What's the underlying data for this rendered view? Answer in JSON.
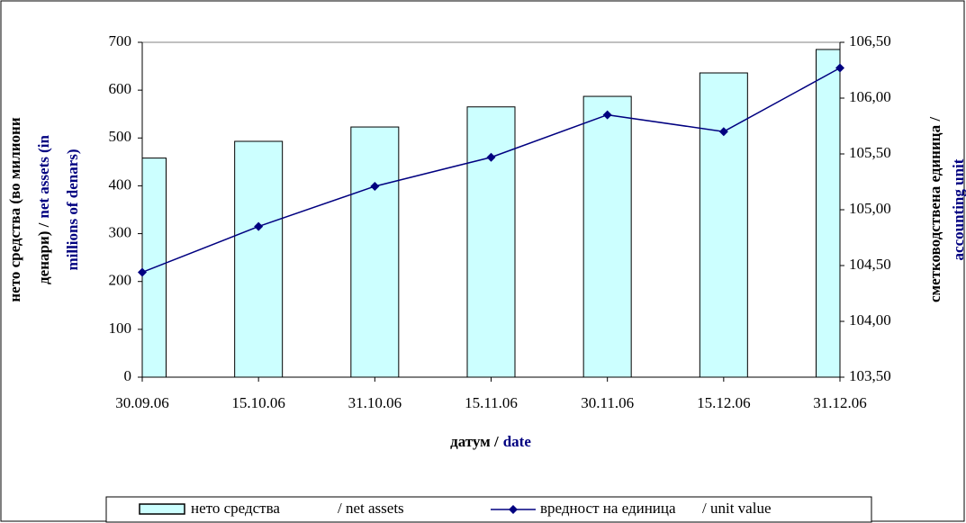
{
  "chart_data": {
    "type": "bar_line",
    "categories": [
      "30.09.06",
      "15.10.06",
      "31.10.06",
      "15.11.06",
      "30.11.06",
      "15.12.06",
      "31.12.06"
    ],
    "series": [
      {
        "name": "нето средства",
        "name_en": "/ net assets",
        "color": "#ccffff",
        "values": [
          458,
          493,
          523,
          565,
          587,
          636,
          685
        ]
      },
      {
        "name": "вредност на единица",
        "name_en": "/ unit value",
        "color": "#000080",
        "axis": "y2",
        "values": [
          104.44,
          104.85,
          105.21,
          105.47,
          105.85,
          105.7,
          106.27
        ]
      }
    ],
    "ylim": [
      0,
      700
    ],
    "yticks": [
      0,
      100,
      200,
      300,
      400,
      500,
      600,
      700
    ],
    "y2lim": [
      103.5,
      106.5
    ],
    "y2ticks": [
      {
        "value": 103.5,
        "label": "103,50"
      },
      {
        "value": 104,
        "label": "104,00"
      },
      {
        "value": 104.5,
        "label": "104,50"
      },
      {
        "value": 105,
        "label": "105,00"
      },
      {
        "value": 105.5,
        "label": "105,50"
      },
      {
        "value": 106,
        "label": "106,00"
      },
      {
        "value": 106.5,
        "label": "106,50"
      }
    ],
    "x_label": [
      {
        "text": "датум /",
        "color": "#000000"
      },
      {
        "text": "date",
        "color": "#000080"
      }
    ],
    "y_label": [
      [
        {
          "text": "нето средства (во милиони",
          "color": "#000000"
        }
      ],
      [
        {
          "text": "денари) /",
          "color": "#000000"
        },
        {
          "text": "net assets (in",
          "color": "#000080"
        }
      ],
      [
        {
          "text": "millions of denars)",
          "color": "#000080"
        }
      ]
    ],
    "y2_label": [
      [
        {
          "text": "сметководствена единица /",
          "color": "#000000"
        }
      ],
      [
        {
          "text": "accounting unit",
          "color": "#000080"
        }
      ]
    ]
  }
}
